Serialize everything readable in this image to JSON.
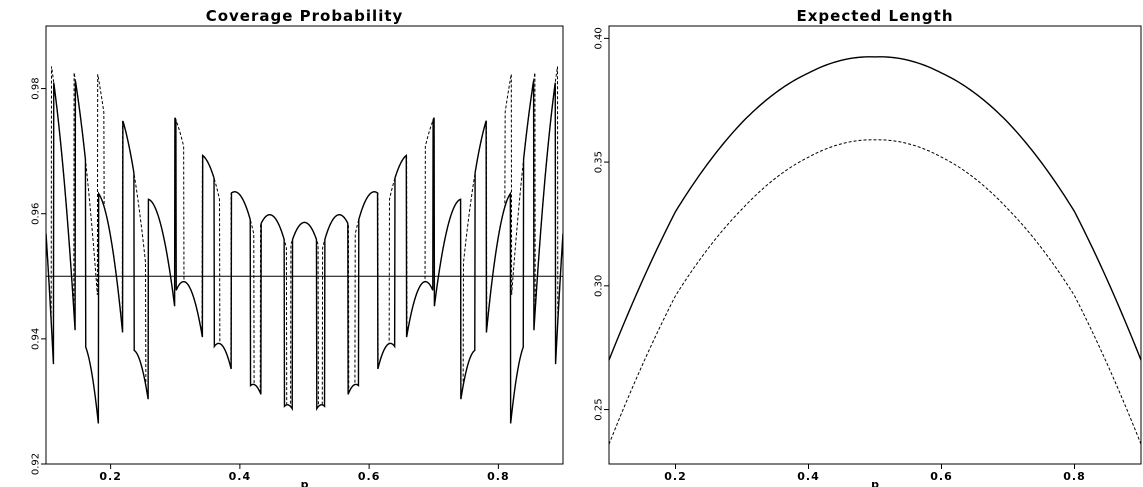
{
  "chart_data": [
    {
      "type": "line",
      "title": "Coverage Probability",
      "xlabel": "p",
      "ylabel": "",
      "xlim": [
        0.1,
        0.9
      ],
      "ylim": [
        0.92,
        0.99
      ],
      "x_ticks": [
        0.2,
        0.4,
        0.6,
        0.8
      ],
      "x_tick_labels": [
        "0.2",
        "0.4",
        "0.6",
        "0.8"
      ],
      "y_ticks": [
        0.92,
        0.94,
        0.96,
        0.98
      ],
      "y_tick_labels": [
        "0.92",
        "0.94",
        "0.96",
        "0.98"
      ],
      "reference_line": 0.95,
      "grid": false,
      "legend": "none",
      "series": [
        {
          "style": "solid",
          "n": 20,
          "level": 0.95
        },
        {
          "style": "dashed",
          "n": 20,
          "level": 0.95
        }
      ]
    },
    {
      "type": "line",
      "title": "Expected Length",
      "xlabel": "p",
      "ylabel": "",
      "xlim": [
        0.1,
        0.9
      ],
      "ylim": [
        0.228,
        0.405
      ],
      "x_ticks": [
        0.2,
        0.4,
        0.6,
        0.8
      ],
      "x_tick_labels": [
        "0.2",
        "0.4",
        "0.6",
        "0.8"
      ],
      "y_ticks": [
        0.25,
        0.3,
        0.35,
        0.4
      ],
      "y_tick_labels": [
        "0.25",
        "0.30",
        "0.35",
        "0.40"
      ],
      "grid": false,
      "legend": "none",
      "series": [
        {
          "style": "solid",
          "x": [
            0.1,
            0.2,
            0.3,
            0.4,
            0.5,
            0.6,
            0.7,
            0.8,
            0.9
          ],
          "y": [
            0.27,
            0.33,
            0.366,
            0.386,
            0.3925,
            0.386,
            0.366,
            0.33,
            0.27
          ]
        },
        {
          "style": "dashed",
          "x": [
            0.1,
            0.2,
            0.3,
            0.4,
            0.5,
            0.6,
            0.7,
            0.8,
            0.9
          ],
          "y": [
            0.236,
            0.296,
            0.331,
            0.352,
            0.359,
            0.352,
            0.331,
            0.296,
            0.236
          ]
        }
      ]
    }
  ]
}
